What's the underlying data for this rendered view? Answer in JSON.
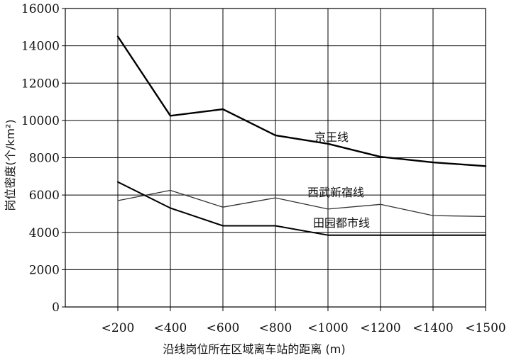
{
  "chart_data": {
    "type": "line",
    "categories": [
      "<200",
      "<400",
      "<600",
      "<800",
      "<1000",
      "<1200",
      "<1400",
      "<1500"
    ],
    "xlabel": "沿线岗位所在区域离车站的距离 (m)",
    "ylabel": "岗位密度(个/km²)",
    "ylim": [
      0,
      16000
    ],
    "yticks": [
      0,
      2000,
      4000,
      6000,
      8000,
      10000,
      12000,
      14000,
      16000
    ],
    "grid": true,
    "series": [
      {
        "name": "京王线",
        "values": [
          14500,
          10250,
          10600,
          9200,
          8750,
          8050,
          7750,
          7550
        ],
        "color": "#000000",
        "width": 2.4
      },
      {
        "name": "西武新宿线",
        "values": [
          5700,
          6250,
          5350,
          5850,
          5250,
          5500,
          4900,
          4850
        ],
        "color": "#333333",
        "width": 1.3
      },
      {
        "name": "田园都市线",
        "values": [
          6700,
          5300,
          4350,
          4350,
          3850,
          3850,
          3850,
          3850
        ],
        "color": "#000000",
        "width": 2.0
      }
    ]
  }
}
